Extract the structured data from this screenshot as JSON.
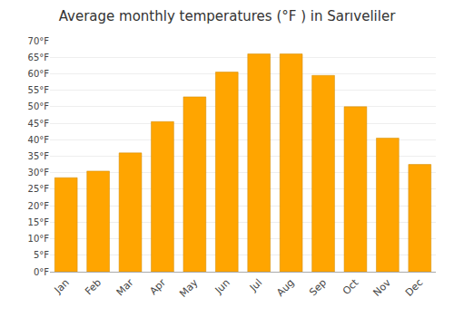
{
  "chart_data": {
    "type": "bar",
    "title": "Average monthly temperatures (°F ) in Sarıveliler",
    "categories": [
      "Jan",
      "Feb",
      "Mar",
      "Apr",
      "May",
      "Jun",
      "Jul",
      "Aug",
      "Sep",
      "Oct",
      "Nov",
      "Dec"
    ],
    "values": [
      28.5,
      30.5,
      36.0,
      45.5,
      53.0,
      60.5,
      66.0,
      66.0,
      59.5,
      50.0,
      40.5,
      32.5
    ],
    "color": "#FFA500",
    "ylim": [
      0,
      70
    ],
    "yticks": [
      {
        "value": 0,
        "label": "0°F"
      },
      {
        "value": 5,
        "label": "5°F"
      },
      {
        "value": 10,
        "label": "10°F"
      },
      {
        "value": 15,
        "label": "15°F"
      },
      {
        "value": 20,
        "label": "20°F"
      },
      {
        "value": 25,
        "label": "25°F"
      },
      {
        "value": 30,
        "label": "30°F"
      },
      {
        "value": 35,
        "label": "35°F"
      },
      {
        "value": 40,
        "label": "40°F"
      },
      {
        "value": 45,
        "label": "45°F"
      },
      {
        "value": 50,
        "label": "50°F"
      },
      {
        "value": 55,
        "label": "55°F"
      },
      {
        "value": 60,
        "label": "60°F"
      },
      {
        "value": 65,
        "label": "65°F"
      },
      {
        "value": 70,
        "label": "70°F"
      }
    ],
    "grid": true
  }
}
